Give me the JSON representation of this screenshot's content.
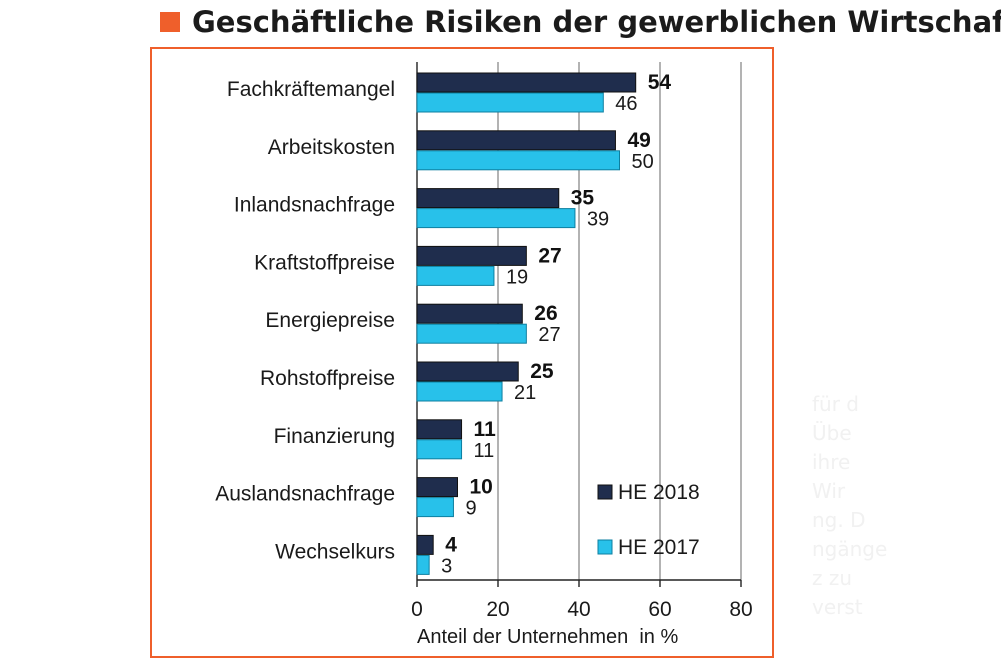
{
  "title": "Geschäftliche Risiken der gewerblichen Wirtschaft",
  "colors": {
    "title_marker": "#ef5f2b",
    "frame": "#ef5f2b",
    "series_2018": "#1f2d4d",
    "series_2017": "#28c1ea"
  },
  "chart_data": {
    "type": "bar",
    "orientation": "horizontal",
    "title": "Geschäftliche Risiken der gewerblichen Wirtschaft",
    "xlabel": "Anteil der Unternehmen  in %",
    "ylabel": "",
    "xlim": [
      0,
      80
    ],
    "xticks": [
      0,
      20,
      40,
      60,
      80
    ],
    "grid": true,
    "legend_position": "bottom-right",
    "categories": [
      "Fachkräftemangel",
      "Arbeitskosten",
      "Inlandsnachfrage",
      "Kraftstoffpreise",
      "Energiepreise",
      "Rohstoffpreise",
      "Finanzierung",
      "Auslandsnachfrage",
      "Wechselkurs"
    ],
    "series": [
      {
        "name": "HE 2018",
        "values": [
          54,
          49,
          35,
          27,
          26,
          25,
          11,
          10,
          4
        ]
      },
      {
        "name": "HE 2017",
        "values": [
          46,
          50,
          39,
          19,
          27,
          21,
          11,
          9,
          3
        ]
      }
    ]
  },
  "background_text": "für d\nÜbe\nihre\nWir\nng. D\nngänge\nz zu\nverst"
}
